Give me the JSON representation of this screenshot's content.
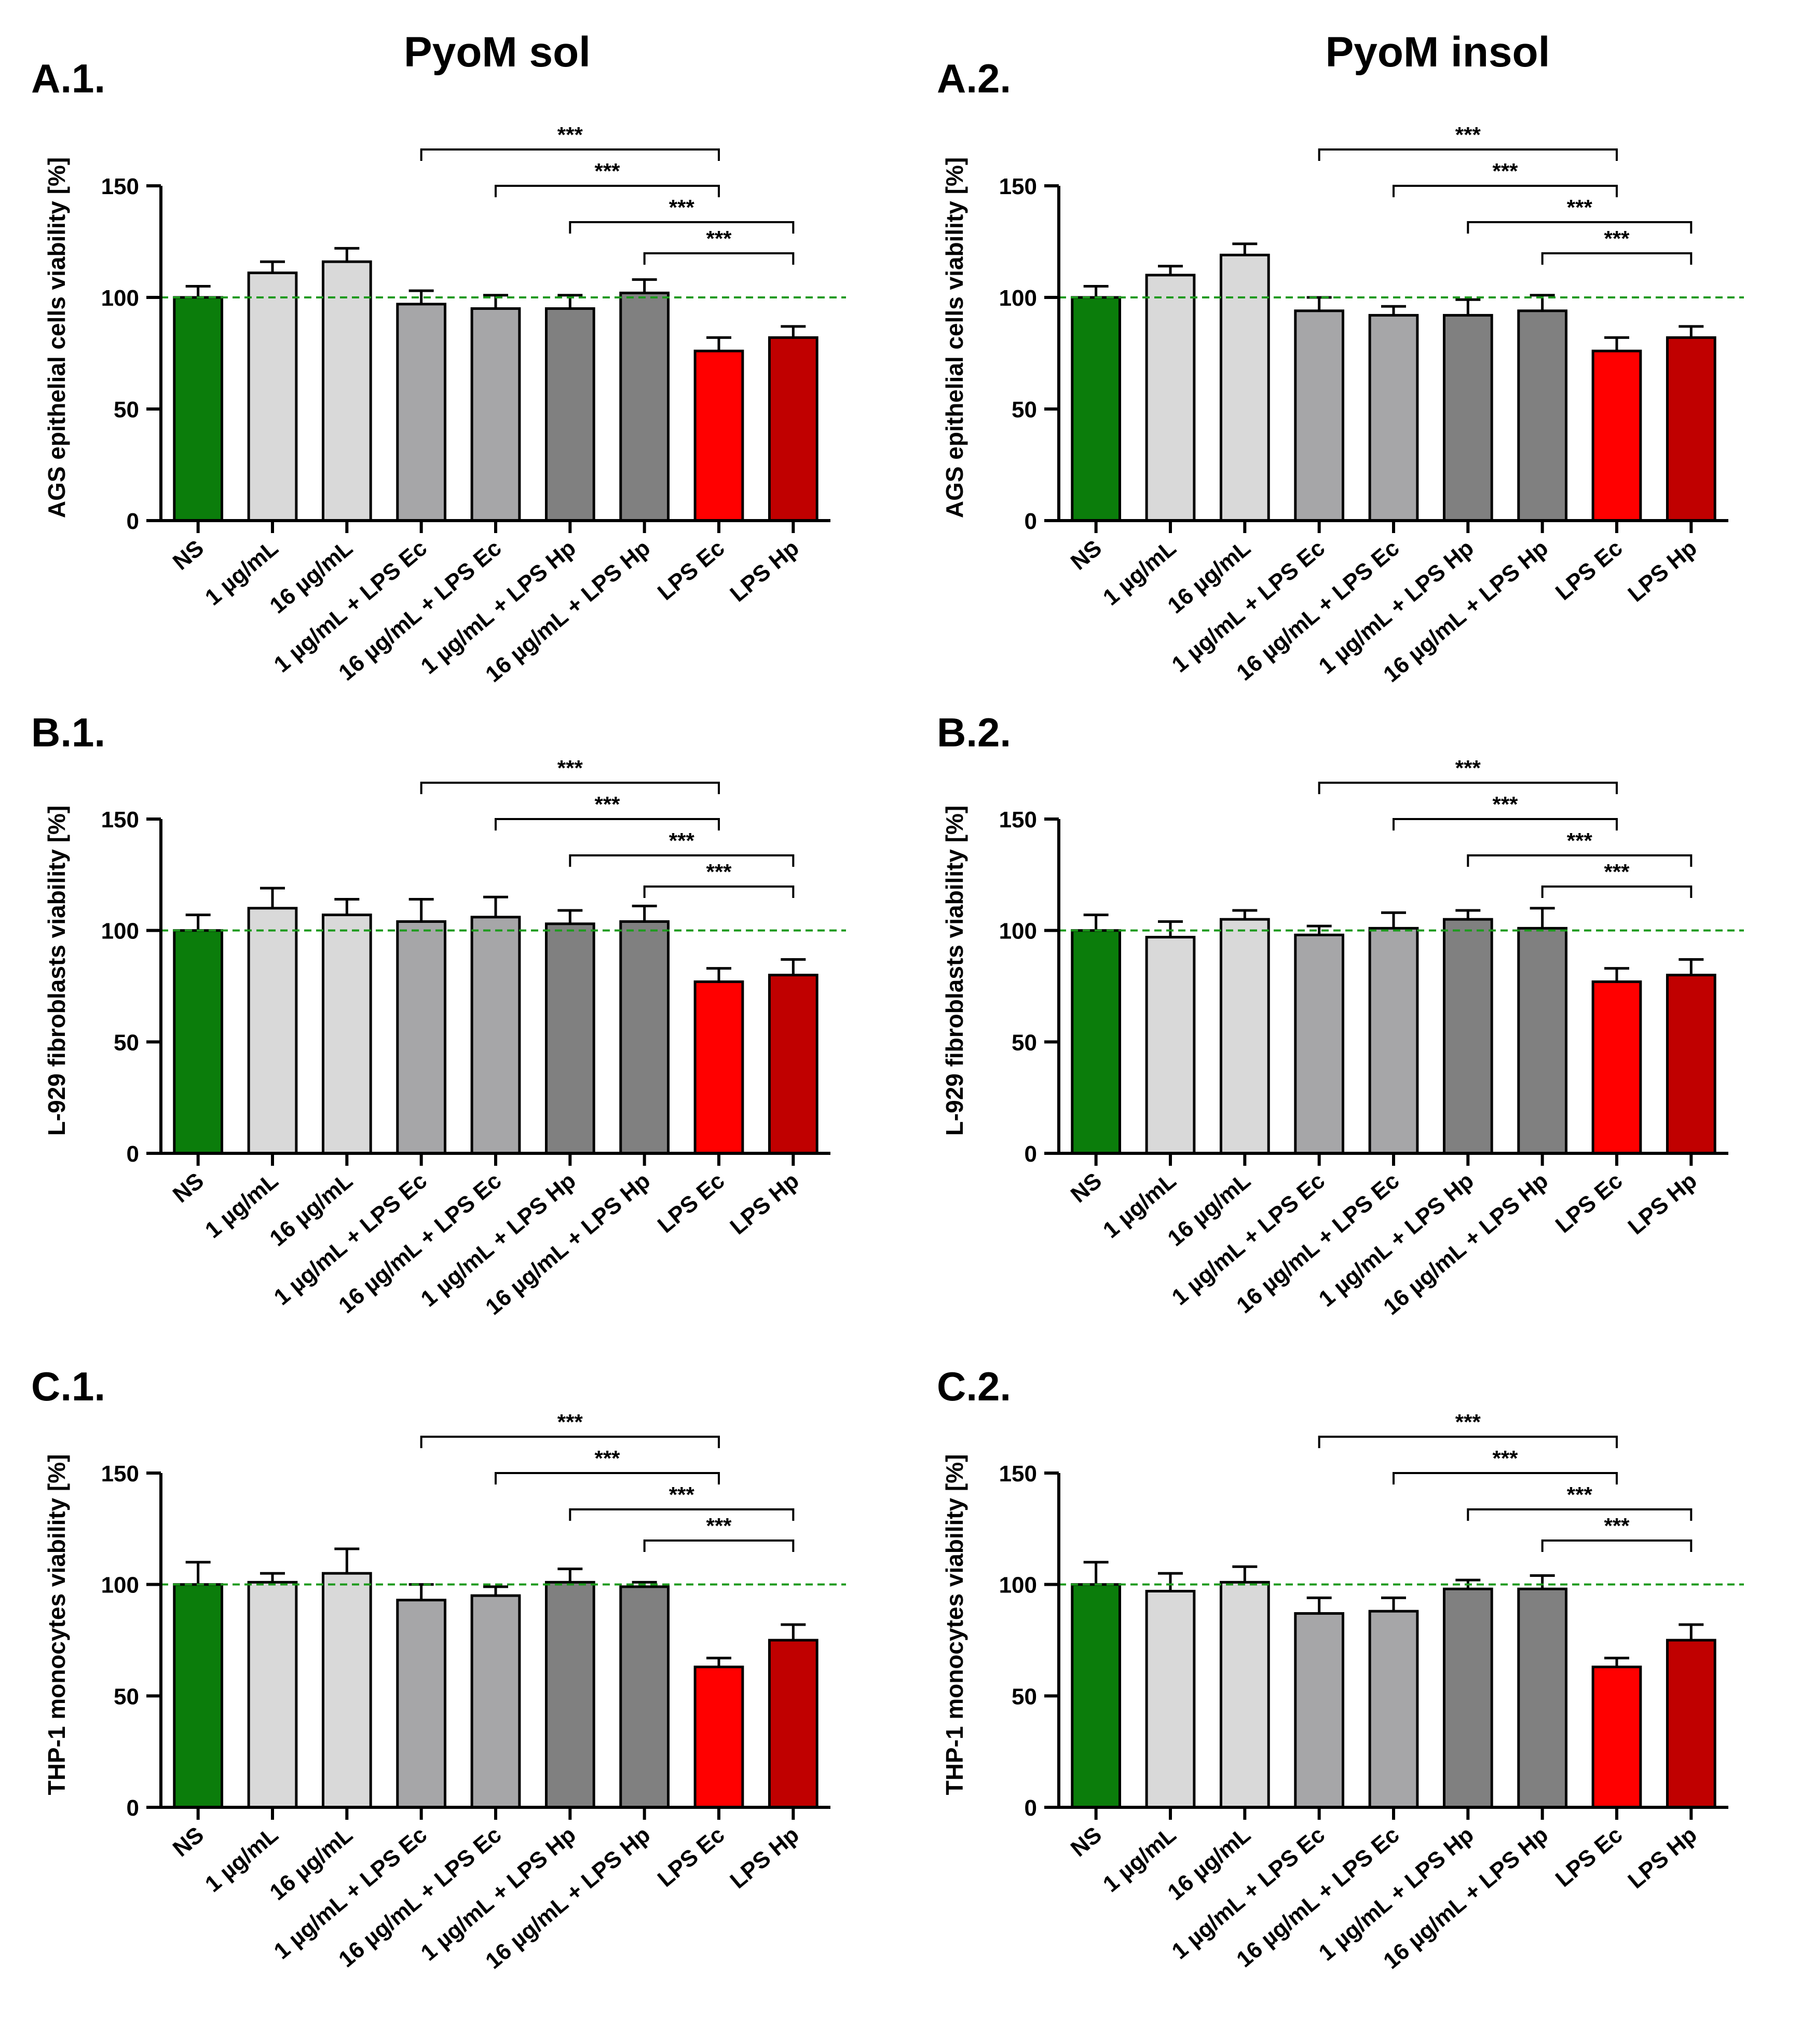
{
  "figure": {
    "col_titles": [
      "PyoM sol",
      "PyoM insol"
    ]
  },
  "chart_data": [
    {
      "type": "bar",
      "panel": "A.1.",
      "column": 0,
      "ylabel": "AGS epithelial cells viability [%]",
      "categories": [
        "NS",
        "1 µg/mL",
        "16 µg/mL",
        "1 µg/mL + LPS Ec",
        "16 µg/mL + LPS Ec",
        "1 µg/mL + LPS Hp",
        "16 µg/mL + LPS Hp",
        "LPS Ec",
        "LPS Hp"
      ],
      "values": [
        100,
        111,
        116,
        97,
        95,
        95,
        102,
        76,
        82
      ],
      "errors": [
        5,
        5,
        6,
        6,
        6,
        6,
        6,
        6,
        5
      ],
      "colors": [
        "#0b7d0b",
        "#d9d9d9",
        "#d9d9d9",
        "#a6a6a8",
        "#a6a6a8",
        "#808080",
        "#808080",
        "#ff0000",
        "#c00000"
      ],
      "ylim": [
        0,
        150
      ],
      "yticks": [
        0,
        50,
        100,
        150
      ],
      "reference_line": 100,
      "brackets": [
        {
          "from": 3,
          "to": 7,
          "label": "***"
        },
        {
          "from": 4,
          "to": 7,
          "label": "***"
        },
        {
          "from": 5,
          "to": 8,
          "label": "***"
        },
        {
          "from": 6,
          "to": 8,
          "label": "***"
        }
      ]
    },
    {
      "type": "bar",
      "panel": "A.2.",
      "column": 1,
      "ylabel": "AGS epithelial cells viability [%]",
      "categories": [
        "NS",
        "1 µg/mL",
        "16 µg/mL",
        "1 µg/mL + LPS Ec",
        "16 µg/mL + LPS Ec",
        "1 µg/mL + LPS Hp",
        "16 µg/mL + LPS Hp",
        "LPS Ec",
        "LPS Hp"
      ],
      "values": [
        100,
        110,
        119,
        94,
        92,
        92,
        94,
        76,
        82
      ],
      "errors": [
        5,
        4,
        5,
        6,
        4,
        7,
        7,
        6,
        5
      ],
      "colors": [
        "#0b7d0b",
        "#d9d9d9",
        "#d9d9d9",
        "#a6a6a8",
        "#a6a6a8",
        "#808080",
        "#808080",
        "#ff0000",
        "#c00000"
      ],
      "ylim": [
        0,
        150
      ],
      "yticks": [
        0,
        50,
        100,
        150
      ],
      "reference_line": 100,
      "brackets": [
        {
          "from": 3,
          "to": 7,
          "label": "***"
        },
        {
          "from": 4,
          "to": 7,
          "label": "***"
        },
        {
          "from": 5,
          "to": 8,
          "label": "***"
        },
        {
          "from": 6,
          "to": 8,
          "label": "***"
        }
      ]
    },
    {
      "type": "bar",
      "panel": "B.1.",
      "column": 0,
      "ylabel": "L-929 fibroblasts viability [%]",
      "categories": [
        "NS",
        "1 µg/mL",
        "16 µg/mL",
        "1 µg/mL + LPS Ec",
        "16 µg/mL + LPS Ec",
        "1 µg/mL + LPS Hp",
        "16 µg/mL + LPS Hp",
        "LPS Ec",
        "LPS Hp"
      ],
      "values": [
        100,
        110,
        107,
        104,
        106,
        103,
        104,
        77,
        80
      ],
      "errors": [
        7,
        9,
        7,
        10,
        9,
        6,
        7,
        6,
        7
      ],
      "colors": [
        "#0b7d0b",
        "#d9d9d9",
        "#d9d9d9",
        "#a6a6a8",
        "#a6a6a8",
        "#808080",
        "#808080",
        "#ff0000",
        "#c00000"
      ],
      "ylim": [
        0,
        150
      ],
      "yticks": [
        0,
        50,
        100,
        150
      ],
      "reference_line": 100,
      "brackets": [
        {
          "from": 3,
          "to": 7,
          "label": "***"
        },
        {
          "from": 4,
          "to": 7,
          "label": "***"
        },
        {
          "from": 5,
          "to": 8,
          "label": "***"
        },
        {
          "from": 6,
          "to": 8,
          "label": "***"
        }
      ]
    },
    {
      "type": "bar",
      "panel": "B.2.",
      "column": 1,
      "ylabel": "L-929 fibroblasts viability [%]",
      "categories": [
        "NS",
        "1 µg/mL",
        "16 µg/mL",
        "1 µg/mL + LPS Ec",
        "16 µg/mL + LPS Ec",
        "1 µg/mL + LPS Hp",
        "16 µg/mL + LPS Hp",
        "LPS Ec",
        "LPS Hp"
      ],
      "values": [
        100,
        97,
        105,
        98,
        101,
        105,
        101,
        77,
        80
      ],
      "errors": [
        7,
        7,
        4,
        4,
        7,
        4,
        9,
        6,
        7
      ],
      "colors": [
        "#0b7d0b",
        "#d9d9d9",
        "#d9d9d9",
        "#a6a6a8",
        "#a6a6a8",
        "#808080",
        "#808080",
        "#ff0000",
        "#c00000"
      ],
      "ylim": [
        0,
        150
      ],
      "yticks": [
        0,
        50,
        100,
        150
      ],
      "reference_line": 100,
      "brackets": [
        {
          "from": 3,
          "to": 7,
          "label": "***"
        },
        {
          "from": 4,
          "to": 7,
          "label": "***"
        },
        {
          "from": 5,
          "to": 8,
          "label": "***"
        },
        {
          "from": 6,
          "to": 8,
          "label": "***"
        }
      ]
    },
    {
      "type": "bar",
      "panel": "C.1.",
      "column": 0,
      "ylabel": "THP-1 monocytes viability [%]",
      "categories": [
        "NS",
        "1 µg/mL",
        "16 µg/mL",
        "1 µg/mL + LPS Ec",
        "16 µg/mL + LPS Ec",
        "1 µg/mL + LPS Hp",
        "16 µg/mL + LPS Hp",
        "LPS Ec",
        "LPS Hp"
      ],
      "values": [
        100,
        101,
        105,
        93,
        95,
        101,
        99,
        63,
        75
      ],
      "errors": [
        10,
        4,
        11,
        7,
        4,
        6,
        2,
        4,
        7
      ],
      "colors": [
        "#0b7d0b",
        "#d9d9d9",
        "#d9d9d9",
        "#a6a6a8",
        "#a6a6a8",
        "#808080",
        "#808080",
        "#ff0000",
        "#c00000"
      ],
      "ylim": [
        0,
        150
      ],
      "yticks": [
        0,
        50,
        100,
        150
      ],
      "reference_line": 100,
      "brackets": [
        {
          "from": 3,
          "to": 7,
          "label": "***"
        },
        {
          "from": 4,
          "to": 7,
          "label": "***"
        },
        {
          "from": 5,
          "to": 8,
          "label": "***"
        },
        {
          "from": 6,
          "to": 8,
          "label": "***"
        }
      ]
    },
    {
      "type": "bar",
      "panel": "C.2.",
      "column": 1,
      "ylabel": "THP-1 monocytes viability [%]",
      "categories": [
        "NS",
        "1 µg/mL",
        "16 µg/mL",
        "1 µg/mL + LPS Ec",
        "16 µg/mL + LPS Ec",
        "1 µg/mL + LPS Hp",
        "16 µg/mL + LPS Hp",
        "LPS Ec",
        "LPS Hp"
      ],
      "values": [
        100,
        97,
        101,
        87,
        88,
        98,
        98,
        63,
        75
      ],
      "errors": [
        10,
        8,
        7,
        7,
        6,
        4,
        6,
        4,
        7
      ],
      "colors": [
        "#0b7d0b",
        "#d9d9d9",
        "#d9d9d9",
        "#a6a6a8",
        "#a6a6a8",
        "#808080",
        "#808080",
        "#ff0000",
        "#c00000"
      ],
      "ylim": [
        0,
        150
      ],
      "yticks": [
        0,
        50,
        100,
        150
      ],
      "reference_line": 100,
      "brackets": [
        {
          "from": 3,
          "to": 7,
          "label": "***"
        },
        {
          "from": 4,
          "to": 7,
          "label": "***"
        },
        {
          "from": 5,
          "to": 8,
          "label": "***"
        },
        {
          "from": 6,
          "to": 8,
          "label": "***"
        }
      ]
    }
  ]
}
